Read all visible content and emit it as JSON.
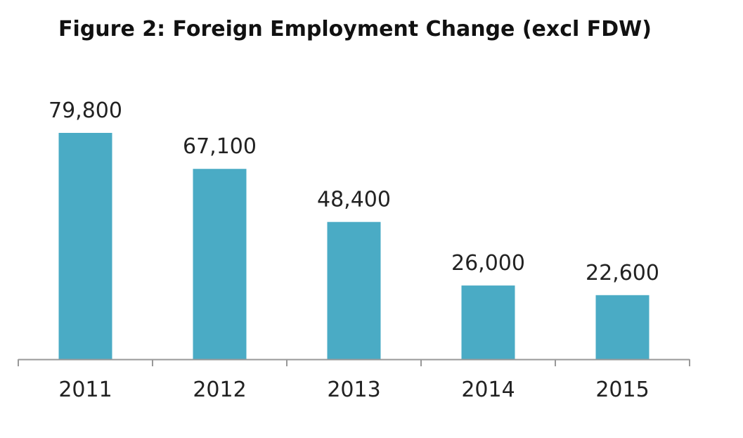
{
  "chart_data": {
    "type": "bar",
    "title": "Figure 2: Foreign Employment Change (excl FDW)",
    "xlabel": "",
    "ylabel": "",
    "categories": [
      "2011",
      "2012",
      "2013",
      "2014",
      "2015"
    ],
    "values": [
      79800,
      67100,
      48400,
      26000,
      22600
    ],
    "data_labels": [
      "79,800",
      "67,100",
      "48,400",
      "26,000",
      "22,600"
    ],
    "ylim": [
      0,
      79800
    ],
    "grid": false,
    "legend": "none",
    "bar_color": "#4aabc5",
    "axis_color": "#999999"
  }
}
